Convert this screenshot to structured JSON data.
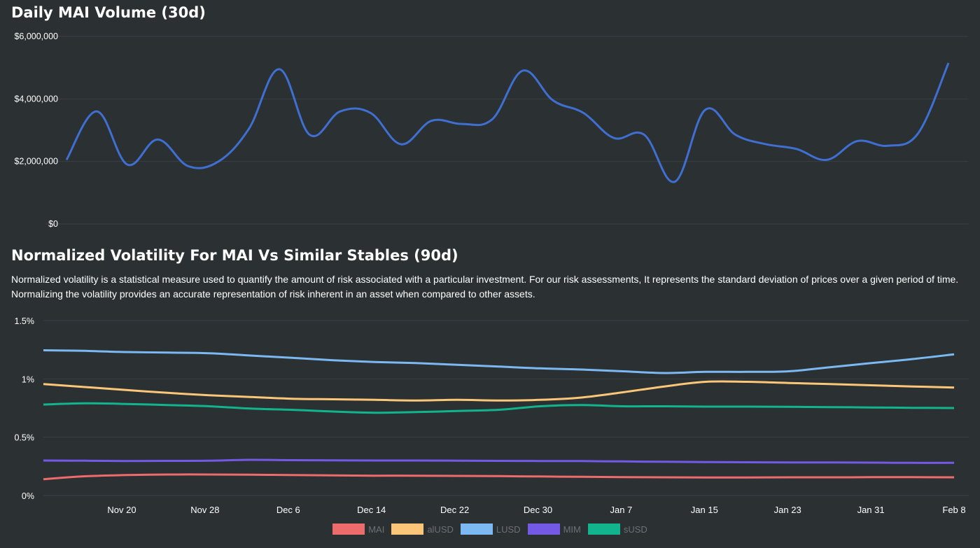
{
  "chart_data": [
    {
      "type": "line",
      "title": "Daily MAI Volume (30d)",
      "ylim": [
        0,
        6000000
      ],
      "yticks": [
        0,
        2000000,
        4000000,
        6000000
      ],
      "ytick_labels": [
        "$0",
        "$2,000,000",
        "$4,000,000",
        "$6,000,000"
      ],
      "grid": true,
      "series": [
        {
          "color": "#3f6fd1",
          "values": [
            2050000,
            3600000,
            1900000,
            2700000,
            1850000,
            2000000,
            3050000,
            4950000,
            2850000,
            3600000,
            3550000,
            2550000,
            3300000,
            3200000,
            3350000,
            4900000,
            3950000,
            3550000,
            2750000,
            2850000,
            1350000,
            3650000,
            2850000,
            2550000,
            2400000,
            2050000,
            2650000,
            2500000,
            2900000,
            5150000
          ]
        }
      ]
    },
    {
      "type": "line",
      "title": "Normalized Volatility For MAI Vs Similar Stables (90d)",
      "x_tick_labels": [
        "Nov 20",
        "Nov 28",
        "Dec 6",
        "Dec 14",
        "Dec 22",
        "Dec 30",
        "Jan 7",
        "Jan 15",
        "Jan 23",
        "Jan 31",
        "Feb 8"
      ],
      "ylim": [
        0,
        1.5
      ],
      "yticks": [
        0,
        0.5,
        1,
        1.5
      ],
      "ytick_labels": [
        "0%",
        "0.5%",
        "1%",
        "1.5%"
      ],
      "grid": true,
      "legend_position": "bottom",
      "series": [
        {
          "name": "MAI",
          "color": "#ec6b6b",
          "values": [
            0.14,
            0.165,
            0.175,
            0.18,
            0.18,
            0.178,
            0.176,
            0.172,
            0.17,
            0.17,
            0.168,
            0.166,
            0.163,
            0.16,
            0.158,
            0.156,
            0.155,
            0.155,
            0.156,
            0.156,
            0.157,
            0.157,
            0.156
          ]
        },
        {
          "name": "alUSD",
          "color": "#fcc679",
          "values": [
            0.955,
            0.93,
            0.905,
            0.88,
            0.86,
            0.845,
            0.83,
            0.825,
            0.82,
            0.815,
            0.82,
            0.815,
            0.82,
            0.84,
            0.885,
            0.935,
            0.975,
            0.975,
            0.965,
            0.955,
            0.945,
            0.935,
            0.925
          ]
        },
        {
          "name": "LUSD",
          "color": "#7cb9f2",
          "values": [
            1.245,
            1.24,
            1.23,
            1.225,
            1.22,
            1.2,
            1.18,
            1.16,
            1.145,
            1.135,
            1.12,
            1.105,
            1.09,
            1.08,
            1.065,
            1.05,
            1.06,
            1.06,
            1.065,
            1.1,
            1.135,
            1.17,
            1.21
          ]
        },
        {
          "name": "MIM",
          "color": "#7359e5",
          "values": [
            0.3,
            0.298,
            0.296,
            0.297,
            0.298,
            0.306,
            0.303,
            0.302,
            0.3,
            0.3,
            0.299,
            0.297,
            0.296,
            0.295,
            0.292,
            0.289,
            0.287,
            0.285,
            0.284,
            0.283,
            0.282,
            0.28,
            0.28
          ]
        },
        {
          "name": "sUSD",
          "color": "#12b48e",
          "values": [
            0.78,
            0.79,
            0.785,
            0.775,
            0.765,
            0.745,
            0.735,
            0.72,
            0.71,
            0.715,
            0.725,
            0.735,
            0.765,
            0.775,
            0.765,
            0.765,
            0.762,
            0.762,
            0.76,
            0.758,
            0.755,
            0.752,
            0.75
          ]
        }
      ]
    }
  ],
  "description": "Normalized volatility is a statistical measure used to quantify the amount of risk associated with a particular investment. For our risk assessments, It represents the standard deviation of prices over a given period of time. Normalizing the volatility provides an accurate representation of risk inherent in an asset when compared to other assets."
}
